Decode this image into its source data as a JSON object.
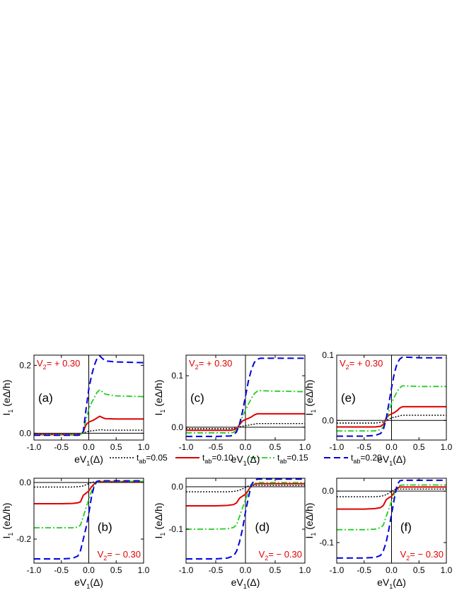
{
  "legend": [
    {
      "prefix": "t",
      "sub": "ab",
      "value": "=0.05"
    },
    {
      "prefix": "t",
      "sub": "ab",
      "value": "=0.10"
    },
    {
      "prefix": "t",
      "sub": "ab",
      "value": "=0.15"
    },
    {
      "prefix": "t",
      "sub": "ab",
      "value": "=0.20"
    }
  ],
  "colors": {
    "t005": "#000000",
    "t010": "#e00000",
    "t015": "#22cc22",
    "t020": "#0000e0",
    "annotation": "#e00000"
  },
  "chart_data": [
    {
      "type": "line",
      "panel": "(a)",
      "annotation": "V₂= + 0.30",
      "xlabel": "eV₁(Δ)",
      "ylabel": "I₁ (eΔ/h)",
      "xlim": [
        -1.0,
        1.0
      ],
      "ylim": [
        -0.02,
        0.23
      ],
      "xticks": [
        "-1.0",
        "-0.5",
        "0.0",
        "0.5",
        "1.0"
      ],
      "yticks": [
        "0.0",
        "0.2"
      ],
      "x": [
        -1.0,
        -0.5,
        -0.2,
        -0.15,
        -0.1,
        -0.05,
        0.0,
        0.05,
        0.1,
        0.15,
        0.2,
        0.25,
        0.3,
        0.5,
        1.0
      ],
      "series": [
        {
          "name": "t_ab=0.05",
          "values": [
            -0.003,
            -0.003,
            -0.003,
            -0.002,
            0.0,
            0.004,
            0.006,
            0.007,
            0.008,
            0.009,
            0.01,
            0.01,
            0.009,
            0.009,
            0.009
          ]
        },
        {
          "name": "t_ab=0.10",
          "values": [
            -0.004,
            -0.004,
            -0.004,
            -0.003,
            0.005,
            0.025,
            0.033,
            0.036,
            0.04,
            0.045,
            0.05,
            0.046,
            0.043,
            0.042,
            0.042
          ]
        },
        {
          "name": "t_ab=0.15",
          "values": [
            -0.005,
            -0.005,
            -0.005,
            -0.004,
            0.005,
            0.04,
            0.07,
            0.09,
            0.105,
            0.12,
            0.128,
            0.122,
            0.115,
            0.11,
            0.108
          ]
        },
        {
          "name": "t_ab=0.20",
          "values": [
            -0.006,
            -0.006,
            -0.006,
            -0.005,
            0.005,
            0.07,
            0.13,
            0.17,
            0.2,
            0.22,
            0.228,
            0.22,
            0.213,
            0.21,
            0.208
          ]
        }
      ]
    },
    {
      "type": "line",
      "panel": "(b)",
      "annotation": "V₂= − 0.30",
      "xlabel": "eV₁(Δ)",
      "ylabel": "I₁ (eΔ/h)",
      "xlim": [
        -1.0,
        1.0
      ],
      "ylim": [
        -0.285,
        0.015
      ],
      "xticks": [
        "-1.0",
        "-0.5",
        "0.0",
        "0.5",
        "1.0"
      ],
      "yticks": [
        "0.0",
        "-0.2"
      ],
      "x": [
        -1.0,
        -0.5,
        -0.3,
        -0.2,
        -0.15,
        -0.1,
        -0.05,
        0.0,
        0.05,
        0.1,
        0.15,
        0.2,
        0.3,
        0.5,
        1.0
      ],
      "series": [
        {
          "name": "t_ab=0.05",
          "values": [
            -0.016,
            -0.016,
            -0.016,
            -0.015,
            -0.014,
            -0.012,
            -0.008,
            -0.004,
            0.0,
            0.002,
            0.002,
            0.002,
            0.002,
            0.002,
            0.002
          ]
        },
        {
          "name": "t_ab=0.10",
          "values": [
            -0.075,
            -0.075,
            -0.074,
            -0.072,
            -0.068,
            -0.045,
            -0.038,
            -0.03,
            -0.015,
            -0.005,
            0.002,
            0.003,
            0.003,
            0.003,
            0.003
          ]
        },
        {
          "name": "t_ab=0.15",
          "values": [
            -0.16,
            -0.16,
            -0.16,
            -0.158,
            -0.15,
            -0.12,
            -0.09,
            -0.06,
            -0.03,
            -0.01,
            0.002,
            0.004,
            0.004,
            0.004,
            0.004
          ]
        },
        {
          "name": "t_ab=0.20",
          "values": [
            -0.27,
            -0.27,
            -0.268,
            -0.26,
            -0.24,
            -0.2,
            -0.16,
            -0.11,
            -0.05,
            -0.01,
            0.004,
            0.006,
            0.006,
            0.006,
            0.006
          ]
        }
      ]
    },
    {
      "type": "line",
      "panel": "(c)",
      "annotation": "V₂= + 0.30",
      "xlabel": "eV₁(Δ)",
      "ylabel": "I₁ (eΔ/h)",
      "xlim": [
        -1.0,
        1.0
      ],
      "ylim": [
        -0.025,
        0.14
      ],
      "xticks": [
        "-1.0",
        "-0.5",
        "0.0",
        "0.5",
        "1.0"
      ],
      "yticks": [
        "0.0",
        "0.1"
      ],
      "x": [
        -1.0,
        -0.5,
        -0.25,
        -0.2,
        -0.15,
        -0.1,
        -0.05,
        0.0,
        0.05,
        0.1,
        0.15,
        0.2,
        0.25,
        0.5,
        1.0
      ],
      "series": [
        {
          "name": "t_ab=0.05",
          "values": [
            -0.003,
            -0.003,
            -0.003,
            -0.002,
            -0.001,
            0.001,
            0.002,
            0.003,
            0.004,
            0.005,
            0.006,
            0.007,
            0.007,
            0.007,
            0.007
          ]
        },
        {
          "name": "t_ab=0.10",
          "values": [
            -0.006,
            -0.006,
            -0.006,
            -0.005,
            -0.003,
            0.005,
            0.012,
            0.015,
            0.017,
            0.02,
            0.024,
            0.026,
            0.026,
            0.026,
            0.026
          ]
        },
        {
          "name": "t_ab=0.15",
          "values": [
            -0.011,
            -0.011,
            -0.011,
            -0.01,
            -0.006,
            0.006,
            0.02,
            0.033,
            0.045,
            0.056,
            0.065,
            0.07,
            0.071,
            0.07,
            0.069
          ]
        },
        {
          "name": "t_ab=0.20",
          "values": [
            -0.018,
            -0.018,
            -0.017,
            -0.015,
            -0.009,
            0.006,
            0.03,
            0.06,
            0.09,
            0.112,
            0.126,
            0.132,
            0.134,
            0.134,
            0.134
          ]
        }
      ]
    },
    {
      "type": "line",
      "panel": "(d)",
      "annotation": "V₂= − 0.30",
      "xlabel": "eV₁(Δ)",
      "ylabel": "I₁ (eΔ/h)",
      "xlim": [
        -1.0,
        1.0
      ],
      "ylim": [
        -0.18,
        0.02
      ],
      "xticks": [
        "-1.0",
        "-0.5",
        "0.0",
        "0.5",
        "1.0"
      ],
      "yticks": [
        "0.0",
        "-0.1"
      ],
      "x": [
        -1.0,
        -0.5,
        -0.3,
        -0.2,
        -0.15,
        -0.1,
        -0.05,
        0.0,
        0.05,
        0.1,
        0.15,
        0.2,
        0.3,
        0.5,
        1.0
      ],
      "series": [
        {
          "name": "t_ab=0.05",
          "values": [
            -0.012,
            -0.012,
            -0.012,
            -0.011,
            -0.01,
            -0.008,
            -0.005,
            -0.002,
            0.002,
            0.003,
            0.003,
            0.003,
            0.003,
            0.003,
            0.003
          ]
        },
        {
          "name": "t_ab=0.10",
          "values": [
            -0.045,
            -0.045,
            -0.044,
            -0.042,
            -0.038,
            -0.027,
            -0.022,
            -0.018,
            -0.008,
            0.003,
            0.006,
            0.007,
            0.007,
            0.007,
            0.007
          ]
        },
        {
          "name": "t_ab=0.15",
          "values": [
            -0.1,
            -0.1,
            -0.099,
            -0.096,
            -0.09,
            -0.07,
            -0.05,
            -0.03,
            -0.012,
            0.003,
            0.008,
            0.01,
            0.01,
            0.01,
            0.01
          ]
        },
        {
          "name": "t_ab=0.20",
          "values": [
            -0.17,
            -0.17,
            -0.168,
            -0.163,
            -0.152,
            -0.13,
            -0.1,
            -0.06,
            -0.025,
            0.005,
            0.015,
            0.018,
            0.018,
            0.018,
            0.018
          ]
        }
      ]
    },
    {
      "type": "line",
      "panel": "(e)",
      "annotation": "V₂= + 0.30",
      "xlabel": "eV₁(Δ)",
      "ylabel": "I₁ (eΔ/h)",
      "xlim": [
        -1.0,
        1.0
      ],
      "ylim": [
        -0.03,
        0.1
      ],
      "xticks": [
        "-1.0",
        "-0.5",
        "0.0",
        "0.5",
        "1.0"
      ],
      "yticks": [
        "0.0",
        "0.1"
      ],
      "x": [
        -1.0,
        -0.5,
        -0.3,
        -0.2,
        -0.15,
        -0.1,
        -0.05,
        0.0,
        0.05,
        0.1,
        0.15,
        0.2,
        0.25,
        0.5,
        1.0
      ],
      "series": [
        {
          "name": "t_ab=0.05",
          "values": [
            -0.004,
            -0.004,
            -0.004,
            -0.003,
            -0.002,
            0.0,
            0.002,
            0.004,
            0.005,
            0.006,
            0.007,
            0.008,
            0.008,
            0.008,
            0.008
          ]
        },
        {
          "name": "t_ab=0.10",
          "values": [
            -0.01,
            -0.01,
            -0.01,
            -0.009,
            -0.006,
            0.003,
            0.008,
            0.01,
            0.012,
            0.015,
            0.019,
            0.021,
            0.021,
            0.021,
            0.021
          ]
        },
        {
          "name": "t_ab=0.15",
          "values": [
            -0.016,
            -0.016,
            -0.016,
            -0.014,
            -0.01,
            0.0,
            0.014,
            0.026,
            0.036,
            0.044,
            0.05,
            0.053,
            0.053,
            0.052,
            0.052
          ]
        },
        {
          "name": "t_ab=0.20",
          "values": [
            -0.024,
            -0.024,
            -0.023,
            -0.02,
            -0.014,
            0.002,
            0.025,
            0.05,
            0.072,
            0.087,
            0.094,
            0.097,
            0.097,
            0.096,
            0.096
          ]
        }
      ]
    },
    {
      "type": "line",
      "panel": "(f)",
      "annotation": "V₂= − 0.30",
      "xlabel": "eV₁(Δ)",
      "ylabel": "I₁ (eΔ/h)",
      "xlim": [
        -1.0,
        1.0
      ],
      "ylim": [
        -0.14,
        0.025
      ],
      "xticks": [
        "-1.0",
        "-0.5",
        "0.0",
        "0.5",
        "1.0"
      ],
      "yticks": [
        "0.0",
        "-0.1"
      ],
      "x": [
        -1.0,
        -0.5,
        -0.3,
        -0.2,
        -0.15,
        -0.1,
        -0.05,
        0.0,
        0.05,
        0.1,
        0.15,
        0.2,
        0.3,
        0.5,
        1.0
      ],
      "series": [
        {
          "name": "t_ab=0.05",
          "values": [
            -0.011,
            -0.011,
            -0.011,
            -0.01,
            -0.009,
            -0.007,
            -0.004,
            -0.001,
            0.003,
            0.004,
            0.004,
            0.004,
            0.004,
            0.004,
            0.004
          ]
        },
        {
          "name": "t_ab=0.10",
          "values": [
            -0.035,
            -0.035,
            -0.034,
            -0.032,
            -0.028,
            -0.017,
            -0.013,
            -0.01,
            -0.002,
            0.006,
            0.008,
            0.008,
            0.008,
            0.008,
            0.008
          ]
        },
        {
          "name": "t_ab=0.15",
          "values": [
            -0.075,
            -0.075,
            -0.074,
            -0.071,
            -0.066,
            -0.05,
            -0.035,
            -0.02,
            -0.005,
            0.008,
            0.011,
            0.012,
            0.012,
            0.012,
            0.012
          ]
        },
        {
          "name": "t_ab=0.20",
          "values": [
            -0.13,
            -0.13,
            -0.129,
            -0.125,
            -0.116,
            -0.1,
            -0.075,
            -0.045,
            -0.015,
            0.012,
            0.02,
            0.021,
            0.021,
            0.021,
            0.021
          ]
        }
      ]
    }
  ]
}
